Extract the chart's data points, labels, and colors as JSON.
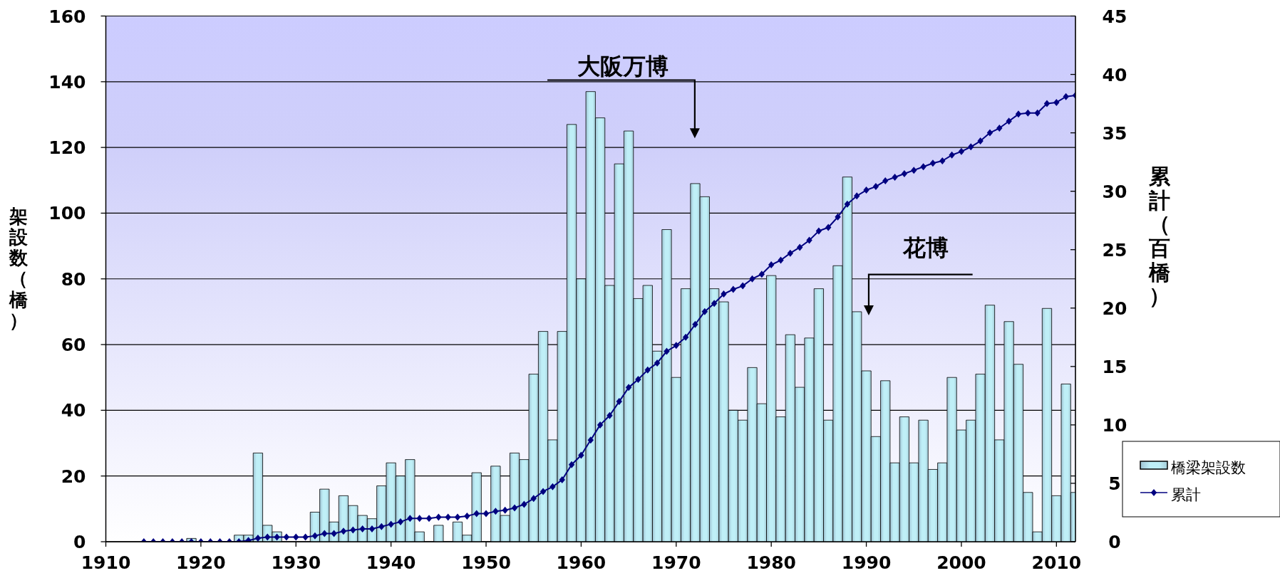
{
  "chart_data": {
    "type": "bar",
    "x": [
      1914,
      1915,
      1916,
      1917,
      1918,
      1919,
      1920,
      1921,
      1922,
      1923,
      1924,
      1925,
      1926,
      1927,
      1928,
      1929,
      1930,
      1931,
      1932,
      1933,
      1934,
      1935,
      1936,
      1937,
      1938,
      1939,
      1940,
      1941,
      1942,
      1943,
      1944,
      1945,
      1946,
      1947,
      1948,
      1949,
      1950,
      1951,
      1952,
      1953,
      1954,
      1955,
      1956,
      1957,
      1958,
      1959,
      1960,
      1961,
      1962,
      1963,
      1964,
      1965,
      1966,
      1967,
      1968,
      1969,
      1970,
      1971,
      1972,
      1973,
      1974,
      1975,
      1976,
      1977,
      1978,
      1979,
      1980,
      1981,
      1982,
      1983,
      1984,
      1985,
      1986,
      1987,
      1988,
      1989,
      1990,
      1991,
      1992,
      1993,
      1994,
      1995,
      1996,
      1997,
      1998,
      1999,
      2000,
      2001,
      2002,
      2003,
      2004,
      2005,
      2006,
      2007,
      2008,
      2009,
      2010,
      2011,
      2012
    ],
    "xlim": [
      1910,
      2012
    ],
    "xticks": [
      1910,
      1920,
      1930,
      1940,
      1950,
      1960,
      1970,
      1980,
      1990,
      2000,
      2010
    ],
    "ylim": [
      0,
      160
    ],
    "yticks": [
      0,
      20,
      40,
      60,
      80,
      100,
      120,
      140,
      160
    ],
    "y2lim": [
      0,
      45
    ],
    "y2ticks": [
      0,
      5,
      10,
      15,
      20,
      25,
      30,
      35,
      40,
      45
    ],
    "ylabel": "架設数（橋）",
    "y2label": "累計（百橋）",
    "grid": "y",
    "legend": "right",
    "marker": "diamond",
    "series": [
      {
        "name": "橋梁架設数",
        "color": "#bfeff7",
        "values": [
          0,
          0,
          0,
          0,
          0,
          1,
          0,
          0,
          0,
          0,
          2,
          2,
          27,
          5,
          3,
          null,
          null,
          0,
          9,
          16,
          6,
          14,
          11,
          8,
          7,
          17,
          24,
          20,
          25,
          3,
          0,
          5,
          0,
          6,
          2,
          21,
          0,
          23,
          8,
          27,
          25,
          51,
          64,
          31,
          64,
          127,
          80,
          137,
          129,
          78,
          115,
          125,
          74,
          78,
          58,
          95,
          50,
          77,
          109,
          105,
          77,
          73,
          40,
          37,
          53,
          42,
          81,
          38,
          63,
          47,
          62,
          77,
          37,
          84,
          111,
          70,
          52,
          32,
          49,
          24,
          38,
          24,
          37,
          22,
          24,
          50,
          34,
          37,
          51,
          72,
          31,
          67,
          54,
          15,
          3,
          71,
          14,
          48,
          15
        ]
      },
      {
        "name": "累計",
        "type": "line",
        "axis": "y2",
        "color": "#000080",
        "values": [
          0,
          0,
          0,
          0,
          0,
          0,
          0,
          0,
          0,
          0,
          0,
          0.1,
          0.3,
          0.4,
          0.4,
          0.4,
          0.4,
          0.4,
          0.5,
          0.7,
          0.7,
          0.9,
          1.0,
          1.1,
          1.1,
          1.3,
          1.5,
          1.7,
          2.0,
          2.0,
          2.0,
          2.1,
          2.1,
          2.1,
          2.2,
          2.4,
          2.4,
          2.6,
          2.7,
          2.9,
          3.2,
          3.7,
          4.3,
          4.7,
          5.3,
          6.6,
          7.4,
          8.7,
          10.0,
          10.8,
          12.0,
          13.2,
          13.9,
          14.7,
          15.3,
          16.3,
          16.8,
          17.5,
          18.6,
          19.7,
          20.4,
          21.2,
          21.6,
          21.9,
          22.5,
          22.9,
          23.7,
          24.1,
          24.7,
          25.2,
          25.8,
          26.6,
          26.9,
          27.8,
          28.9,
          29.6,
          30.1,
          30.4,
          30.9,
          31.2,
          31.5,
          31.8,
          32.1,
          32.4,
          32.6,
          33.1,
          33.4,
          33.8,
          34.3,
          35.0,
          35.4,
          36.0,
          36.6,
          36.7,
          36.7,
          37.5,
          37.6,
          38.1,
          38.2
        ]
      }
    ],
    "annotations": [
      "大阪万博",
      "花博"
    ]
  }
}
